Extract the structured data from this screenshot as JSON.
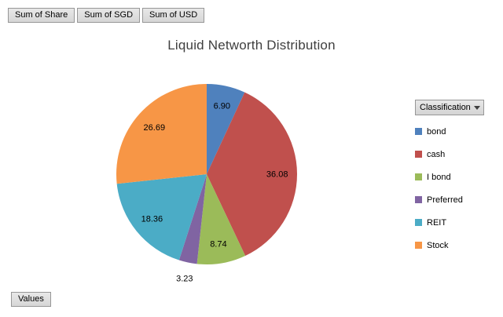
{
  "field_buttons": [
    {
      "label": "Sum of Share"
    },
    {
      "label": "Sum of SGD"
    },
    {
      "label": "Sum of USD"
    }
  ],
  "values_button": {
    "label": "Values"
  },
  "legend_button": {
    "label": "Classification"
  },
  "chart_data": {
    "type": "pie",
    "title": "Liquid Networth Distribution",
    "categories": [
      "bond",
      "cash",
      "I bond",
      "Preferred",
      "REIT",
      "Stock"
    ],
    "values": [
      6.9,
      36.08,
      8.74,
      3.23,
      18.36,
      26.69
    ],
    "labels": [
      "6.90",
      "36.08",
      "8.74",
      "3.23",
      "18.36",
      "26.69"
    ],
    "colors": [
      "#4F81BD",
      "#C0504D",
      "#9BBB59",
      "#8064A2",
      "#4BACC6",
      "#F79646"
    ],
    "start_angle_deg": 0,
    "direction": "clockwise",
    "legend_position": "right",
    "legend_entries": [
      "bond",
      "cash",
      "I bond",
      "Preferred",
      "REIT",
      "Stock"
    ]
  }
}
